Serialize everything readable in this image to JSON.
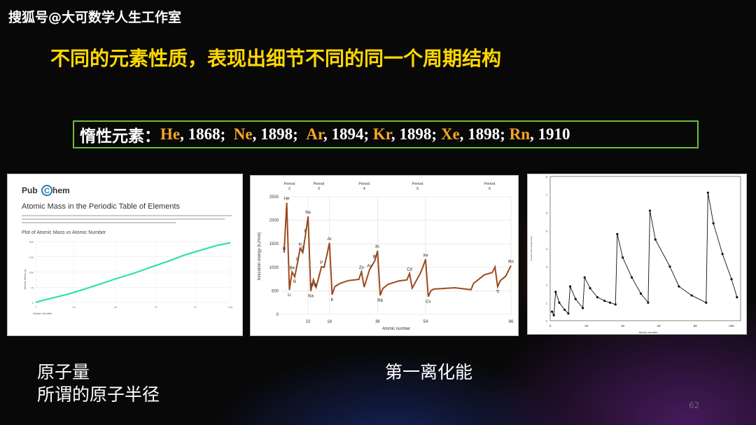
{
  "watermark": "搜狐号@大可数学人生工作室",
  "title": "不同的元素性质，表现出细节不同的同一个周期结构",
  "inert": {
    "label": "惰性元素：",
    "items": [
      {
        "symbol": "He",
        "rest": ", 1868;  "
      },
      {
        "symbol": "Ne",
        "rest": ", 1898;  "
      },
      {
        "symbol": "Ar",
        "rest": ", 1894; "
      },
      {
        "symbol": "Kr",
        "rest": ", 1898; "
      },
      {
        "symbol": "Xe",
        "rest": ", 1898; "
      },
      {
        "symbol": "Rn",
        "rest": ", 1910"
      }
    ]
  },
  "panel1": {
    "logo_a": "Pub",
    "logo_c": "C",
    "logo_b": "hem",
    "heading": "Atomic Mass in the Periodic Table of Elements",
    "plot_title": "Plot of Atomic Mass vs Atomic Number",
    "ylabel": "Atomic Mass (u)",
    "xlabel": "Atomic Number",
    "yticks": [
      "300",
      "225",
      "150",
      "75",
      "0"
    ],
    "xticks": [
      "1",
      "24",
      "49",
      "73",
      "97",
      "118"
    ]
  },
  "panel2": {
    "ylabel": "Ionization energy (kJ/mol)",
    "xlabel": "Atomic number",
    "yticks": [
      "2500",
      "2000",
      "1500",
      "1000",
      "500",
      "0"
    ],
    "xticks": [
      "10",
      "18",
      "36",
      "54",
      "86"
    ],
    "periods": [
      {
        "label": "Period",
        "num": "2"
      },
      {
        "label": "Period",
        "num": "3"
      },
      {
        "label": "Period",
        "num": "4"
      },
      {
        "label": "Period",
        "num": "5"
      },
      {
        "label": "Period",
        "num": "6"
      }
    ]
  },
  "panel3": {
    "ylabel": "Atomic radius (angstroms)",
    "xlabel": "Atomic number",
    "yticks": [
      "8",
      "7",
      "6",
      "5",
      "4",
      "3",
      "2",
      "1",
      "0"
    ],
    "xticks": [
      "0",
      "20",
      "40",
      "60",
      "80",
      "100"
    ]
  },
  "chart_data": [
    {
      "type": "line",
      "title": "Plot of Atomic Mass vs Atomic Number",
      "xlabel": "Atomic Number",
      "ylabel": "Atomic Mass (u)",
      "xlim": [
        1,
        118
      ],
      "ylim": [
        0,
        300
      ],
      "series": [
        {
          "color": "#2ee0b0",
          "x": [
            1,
            10,
            20,
            30,
            40,
            50,
            60,
            70,
            80,
            90,
            100,
            110,
            118
          ],
          "y": [
            1,
            20,
            40,
            65,
            91,
            119,
            144,
            173,
            201,
            232,
            257,
            281,
            294
          ]
        }
      ]
    },
    {
      "type": "line",
      "xlabel": "Atomic number",
      "ylabel": "Ionization energy (kJ/mol)",
      "xlim": [
        0,
        86
      ],
      "ylim": [
        0,
        2500
      ],
      "points": [
        {
          "z": 1,
          "v": 1312,
          "label": "H"
        },
        {
          "z": 2,
          "v": 2372,
          "label": "He"
        },
        {
          "z": 3,
          "v": 520,
          "label": "Li"
        },
        {
          "z": 4,
          "v": 900,
          "label": "Be"
        },
        {
          "z": 5,
          "v": 801,
          "label": "B"
        },
        {
          "z": 6,
          "v": 1086,
          "label": "C"
        },
        {
          "z": 7,
          "v": 1402,
          "label": "N"
        },
        {
          "z": 8,
          "v": 1314,
          "label": "O"
        },
        {
          "z": 9,
          "v": 1681,
          "label": "F"
        },
        {
          "z": 10,
          "v": 2081,
          "label": "Ne"
        },
        {
          "z": 11,
          "v": 496,
          "label": "Na"
        },
        {
          "z": 12,
          "v": 738,
          "label": "Mg"
        },
        {
          "z": 13,
          "v": 578,
          "label": ""
        },
        {
          "z": 14,
          "v": 787,
          "label": ""
        },
        {
          "z": 15,
          "v": 1012,
          "label": "P"
        },
        {
          "z": 16,
          "v": 1000,
          "label": ""
        },
        {
          "z": 17,
          "v": 1251,
          "label": ""
        },
        {
          "z": 18,
          "v": 1521,
          "label": "Ar"
        },
        {
          "z": 19,
          "v": 419,
          "label": "K"
        },
        {
          "z": 20,
          "v": 590,
          "label": ""
        },
        {
          "z": 22,
          "v": 659,
          "label": ""
        },
        {
          "z": 25,
          "v": 717,
          "label": ""
        },
        {
          "z": 28,
          "v": 737,
          "label": ""
        },
        {
          "z": 29,
          "v": 745,
          "label": ""
        },
        {
          "z": 30,
          "v": 906,
          "label": "Zn"
        },
        {
          "z": 31,
          "v": 579,
          "label": ""
        },
        {
          "z": 33,
          "v": 947,
          "label": "As"
        },
        {
          "z": 35,
          "v": 1140,
          "label": "Br"
        },
        {
          "z": 36,
          "v": 1351,
          "label": "Kr"
        },
        {
          "z": 37,
          "v": 403,
          "label": "Rb"
        },
        {
          "z": 38,
          "v": 550,
          "label": ""
        },
        {
          "z": 40,
          "v": 640,
          "label": ""
        },
        {
          "z": 44,
          "v": 711,
          "label": ""
        },
        {
          "z": 47,
          "v": 731,
          "label": ""
        },
        {
          "z": 48,
          "v": 868,
          "label": "Cd"
        },
        {
          "z": 49,
          "v": 558,
          "label": ""
        },
        {
          "z": 52,
          "v": 869,
          "label": ""
        },
        {
          "z": 53,
          "v": 1008,
          "label": ""
        },
        {
          "z": 54,
          "v": 1170,
          "label": "Xe"
        },
        {
          "z": 55,
          "v": 376,
          "label": "Cs"
        },
        {
          "z": 56,
          "v": 503,
          "label": ""
        },
        {
          "z": 57,
          "v": 538,
          "label": ""
        },
        {
          "z": 65,
          "v": 566,
          "label": ""
        },
        {
          "z": 71,
          "v": 524,
          "label": ""
        },
        {
          "z": 72,
          "v": 659,
          "label": ""
        },
        {
          "z": 76,
          "v": 840,
          "label": ""
        },
        {
          "z": 79,
          "v": 890,
          "label": ""
        },
        {
          "z": 80,
          "v": 1007,
          "label": ""
        },
        {
          "z": 81,
          "v": 589,
          "label": "Tl"
        },
        {
          "z": 82,
          "v": 716,
          "label": ""
        },
        {
          "z": 84,
          "v": 812,
          "label": ""
        },
        {
          "z": 86,
          "v": 1037,
          "label": "Rn"
        }
      ]
    },
    {
      "type": "line",
      "xlabel": "Atomic number",
      "ylabel": "Atomic radius (angstroms)",
      "xlim": [
        0,
        105
      ],
      "ylim": [
        0,
        8
      ],
      "series": [
        {
          "color": "#111111",
          "x": [
            1,
            2,
            3,
            5,
            8,
            10,
            11,
            14,
            18,
            19,
            22,
            26,
            30,
            33,
            36,
            37,
            40,
            45,
            50,
            54,
            55,
            58,
            66,
            71,
            78,
            86,
            87,
            90,
            95,
            100,
            103
          ],
          "y": [
            0.5,
            0.3,
            1.6,
            1.0,
            0.6,
            0.4,
            1.9,
            1.2,
            0.7,
            2.4,
            1.8,
            1.3,
            1.1,
            1.0,
            0.9,
            4.8,
            3.5,
            2.4,
            1.5,
            1.0,
            6.1,
            4.5,
            3.0,
            1.9,
            1.4,
            1.0,
            7.1,
            5.4,
            3.7,
            2.3,
            1.3
          ]
        }
      ]
    }
  ],
  "caption_left1": "原子量",
  "caption_left2": "所谓的原子半径",
  "caption_right": "第一离化能",
  "page_number": "62"
}
